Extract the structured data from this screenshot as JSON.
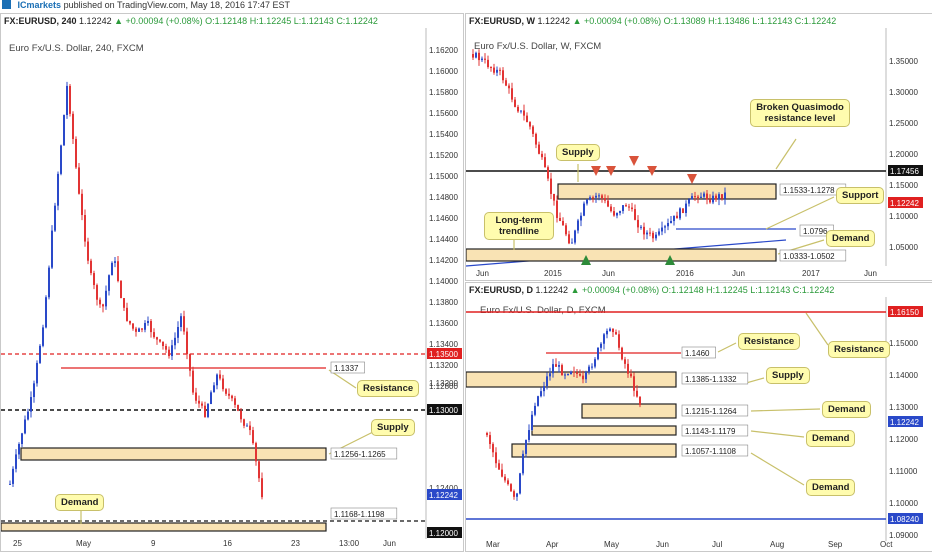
{
  "header": {
    "brand": "ICmarkets",
    "text": "published on TradingView.com, May 18, 2016 17:47 EST"
  },
  "panel_left": {
    "symbol": "FX:EURUSD, 240",
    "price": "1.12242",
    "change": "+0.00094 (+0.08%)",
    "open": "O:1.12148",
    "high": "H:1.12245",
    "low": "L:1.12143",
    "close": "C:1.12242",
    "subtitle": "Euro Fx/U.S. Dollar, 240, FXCM",
    "yticks": [
      "1.16200",
      "1.16000",
      "1.15800",
      "1.15600",
      "1.15400",
      "1.15200",
      "1.15000",
      "1.14800",
      "1.14600",
      "1.14400",
      "1.14200",
      "1.14000",
      "1.13800",
      "1.13600",
      "1.13400",
      "1.13200",
      "1.12800",
      "1.12600",
      "1.12400",
      "1.12000"
    ],
    "xticks": [
      "25",
      "May",
      "9",
      "16",
      "23",
      "13:00",
      "Jun"
    ],
    "price_tags": [
      "1.13500",
      "1.13000",
      "1.12242",
      "1.12000"
    ],
    "labels": {
      "l1337": "1.1337",
      "l1256": "1.1256-1.1265",
      "l1168": "1.1168-1.1198"
    },
    "annotations": {
      "resistance": "Resistance",
      "supply": "Supply",
      "demand": "Demand"
    }
  },
  "panel_weekly": {
    "symbol": "FX:EURUSD, W",
    "price": "1.12242",
    "change": "+0.00094 (+0.08%)",
    "open": "O:1.13089",
    "high": "H:1.13486",
    "low": "L:1.12143",
    "close": "C:1.12242",
    "subtitle": "Euro Fx/U.S. Dollar, W, FXCM",
    "yticks": [
      "1.35000",
      "1.30000",
      "1.25000",
      "1.20000",
      "1.15000",
      "1.10000",
      "1.05000"
    ],
    "xticks": [
      "Jun",
      "2015",
      "Jun",
      "2016",
      "Jun",
      "2017",
      "Jun"
    ],
    "price_tags": [
      "1.17456",
      "1.12242"
    ],
    "labels": {
      "l1533": "1.1533-1.1278",
      "l0796": "1.0796",
      "l0333": "1.0333-1.0502"
    },
    "annotations": {
      "broken": "Broken Quasimodo resistance level",
      "supply": "Supply",
      "support": "Support",
      "trend": "Long-term trendline",
      "demand": "Demand"
    }
  },
  "panel_daily": {
    "symbol": "FX:EURUSD, D",
    "price": "1.12242",
    "change": "+0.00094 (+0.08%)",
    "open": "O:1.12148",
    "high": "H:1.12245",
    "low": "L:1.12143",
    "close": "C:1.12242",
    "subtitle": "Euro Fx/U.S. Dollar, D, FXCM",
    "yticks": [
      "1.15000",
      "1.14000",
      "1.13000",
      "1.12000",
      "1.11000",
      "1.10000",
      "1.09000"
    ],
    "xticks": [
      "Mar",
      "Apr",
      "May",
      "Jun",
      "Jul",
      "Aug",
      "Sep",
      "Oct"
    ],
    "price_tags": [
      "1.16150",
      "1.12242",
      "1.08240"
    ],
    "labels": {
      "l1460": "1.1460",
      "l1385": "1.1385-1.1332",
      "l1215": "1.1215-1.1264",
      "l1143": "1.1143-1.1179",
      "l1057": "1.1057-1.1108"
    },
    "annotations": {
      "resistance1": "Resistance",
      "resistance2": "Resistance",
      "supply": "Supply",
      "demand1": "Demand",
      "demand2": "Demand",
      "demand3": "Demand"
    }
  },
  "colors": {
    "bull": "#2a49c9",
    "bear": "#e23434",
    "zone": "#f9e3b4",
    "zone_border": "#222",
    "annotation": "#fffcae"
  }
}
